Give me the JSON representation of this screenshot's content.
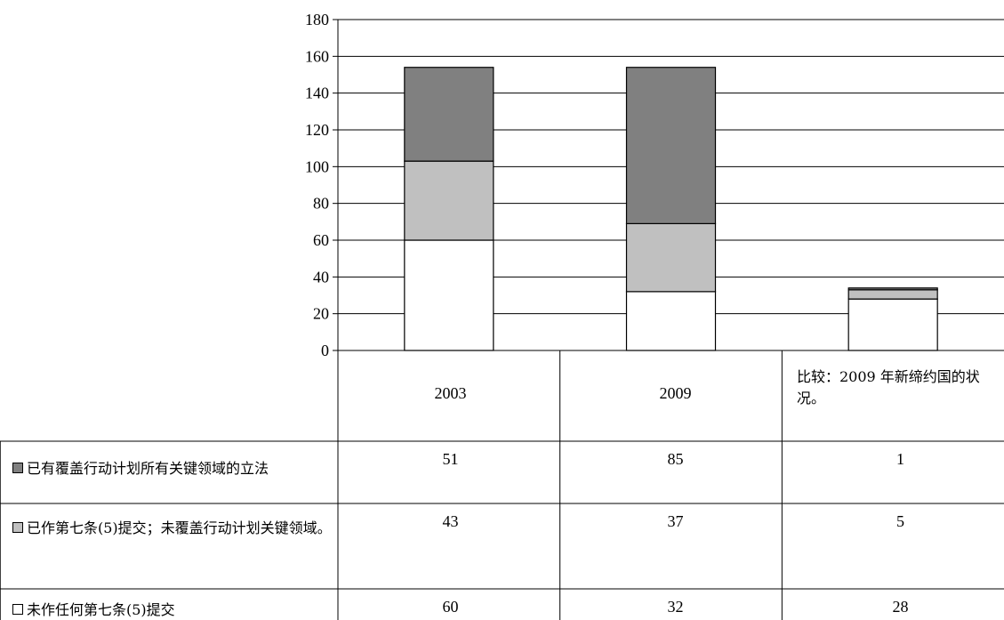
{
  "chart_data": {
    "type": "bar",
    "stacked": true,
    "categories": [
      "2003",
      "2009",
      "比较：2009 年新缔约国的状况。"
    ],
    "ylim": [
      0,
      180
    ],
    "yticks": [
      0,
      20,
      40,
      60,
      80,
      100,
      120,
      140,
      160,
      180
    ],
    "grid": true,
    "series": [
      {
        "name": "未作任何第七条(5)提交",
        "values": [
          60,
          32,
          28
        ],
        "color": "#ffffff"
      },
      {
        "name": "已作第七条(5)提交；未覆盖行动计划关键领域。",
        "values": [
          43,
          37,
          5
        ],
        "color": "#c0c0c0"
      },
      {
        "name": "已有覆盖行动计划所有关键领域的立法",
        "values": [
          51,
          85,
          1
        ],
        "color": "#808080"
      }
    ]
  },
  "table": {
    "header": [
      "2003",
      "2009",
      "比较：2009 年新缔约国的状况。"
    ],
    "rows": [
      {
        "label": "已有覆盖行动计划所有关键领域的立法",
        "values": [
          "51",
          "85",
          "1"
        ]
      },
      {
        "label": "已作第七条(5)提交；未覆盖行动计划关键领域。",
        "values": [
          "43",
          "37",
          "5"
        ]
      },
      {
        "label": "未作任何第七条(5)提交",
        "values": [
          "60",
          "32",
          "28"
        ]
      }
    ]
  }
}
